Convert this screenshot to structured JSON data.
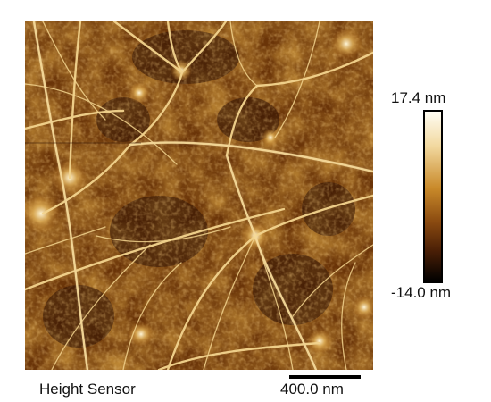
{
  "image": {
    "description_icon": "afm-height-map-icon"
  },
  "colorbar": {
    "max_label": "17.4 nm",
    "min_label": "-14.0 nm",
    "colors": [
      "#fffdf4",
      "#f2d9a0",
      "#c98a2a",
      "#8a4a10",
      "#4a1f06",
      "#000000"
    ]
  },
  "channel": {
    "label": "Height Sensor"
  },
  "scalebar": {
    "label": "400.0 nm"
  }
}
